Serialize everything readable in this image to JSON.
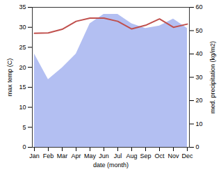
{
  "chart_data": {
    "type": "line",
    "x_label": "date (month)",
    "y_label": "max temp (C)",
    "y2_label": "med. precipitation (kg/m2)",
    "categories": [
      "Jan",
      "Feb",
      "Mar",
      "Apr",
      "May",
      "Jun",
      "Jul",
      "Aug",
      "Sep",
      "Oct",
      "Nov",
      "Dec"
    ],
    "series": [
      {
        "type": "area",
        "axis": "y2",
        "color": "#b3bff2",
        "values": [
          40,
          29,
          34,
          40,
          53,
          57,
          57,
          53,
          51,
          52,
          55,
          51
        ]
      },
      {
        "type": "line",
        "color": "#c0504d",
        "values": [
          28.5,
          28.6,
          29.5,
          31.5,
          32.3,
          32.3,
          31.5,
          29.6,
          30.5,
          32.1,
          30,
          30.8
        ]
      }
    ],
    "ylim": [
      0,
      35
    ],
    "yticks": [
      0,
      5,
      10,
      15,
      20,
      25,
      30,
      35
    ],
    "y2lim": [
      0,
      60
    ],
    "y2ticks": [
      0,
      10,
      20,
      30,
      40,
      50,
      60
    ]
  }
}
